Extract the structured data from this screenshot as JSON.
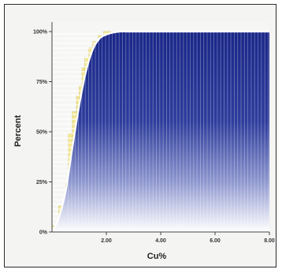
{
  "chart_data": {
    "type": "area",
    "xlabel": "Cu%",
    "ylabel": "Percent",
    "x_ticks": [
      "2.00",
      "4.00",
      "6.00",
      "8.00"
    ],
    "y_ticks": [
      "0%",
      "25%",
      "50%",
      "75%",
      "100%"
    ],
    "xlim": [
      0,
      8
    ],
    "ylim": [
      0,
      100
    ],
    "grid": false,
    "colors": {
      "cumulative_fill": "#1c2a8c",
      "histogram_bars": "#f3e78f",
      "curve": "#ffffff",
      "bar_stripes": "#ffffff"
    },
    "series": [
      {
        "kind": "cumulative",
        "x": [
          0,
          0.25,
          0.5,
          0.75,
          1.0,
          1.25,
          1.5,
          1.75,
          2.0,
          2.25,
          2.5,
          2.75,
          3.0,
          4.0,
          5.0,
          6.0,
          7.0,
          8.0
        ],
        "y": [
          0,
          7,
          20,
          42,
          63,
          80,
          91,
          96.5,
          98.5,
          99.5,
          100,
          100,
          100,
          100,
          100,
          100,
          100,
          100
        ]
      },
      {
        "kind": "histogram",
        "bins": [
          {
            "x": 0.0,
            "y": 3
          },
          {
            "x": 0.25,
            "y": 13
          },
          {
            "x": 0.5,
            "y": 24
          },
          {
            "x": 0.6,
            "y": 49
          },
          {
            "x": 0.75,
            "y": 60
          },
          {
            "x": 0.9,
            "y": 68
          },
          {
            "x": 1.0,
            "y": 73
          },
          {
            "x": 1.1,
            "y": 82
          },
          {
            "x": 1.2,
            "y": 87
          },
          {
            "x": 1.35,
            "y": 92
          },
          {
            "x": 1.5,
            "y": 95
          },
          {
            "x": 1.7,
            "y": 98
          },
          {
            "x": 1.9,
            "y": 100
          }
        ]
      }
    ]
  }
}
